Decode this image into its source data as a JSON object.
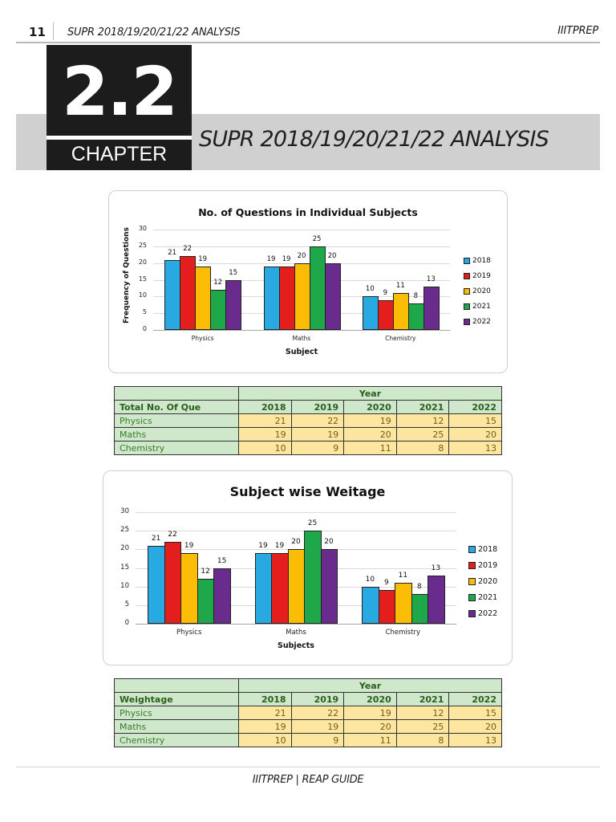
{
  "header": {
    "page_number": "11",
    "title": "SUPR 2018/19/20/21/22 ANALYSIS",
    "brand": "IIITPREP"
  },
  "chapter": {
    "number": "2.2",
    "label": "CHAPTER",
    "title": "SUPR 2018/19/20/21/22 ANALYSIS"
  },
  "colors": {
    "2018": "#29a9e1",
    "2019": "#e31e1c",
    "2020": "#fbbc05",
    "2021": "#1fa84a",
    "2022": "#6a2c8c",
    "table_header_bg": "#cfe8cc",
    "table_value_bg": "#fde7a0"
  },
  "chart_data": [
    {
      "type": "bar",
      "title": "No. of Questions in Individual Subjects",
      "xlabel": "Subject",
      "ylabel": "Frequency of Questions",
      "categories": [
        "Physics",
        "Maths",
        "Chemistry"
      ],
      "yticks": [
        "0",
        "5",
        "10",
        "15",
        "20",
        "25",
        "30"
      ],
      "ylim": [
        0,
        30
      ],
      "grid": true,
      "legend_position": "right",
      "series": [
        {
          "name": "2018",
          "values": [
            21,
            19,
            10
          ]
        },
        {
          "name": "2019",
          "values": [
            22,
            19,
            9
          ]
        },
        {
          "name": "2020",
          "values": [
            19,
            20,
            11
          ]
        },
        {
          "name": "2021",
          "values": [
            12,
            25,
            8
          ]
        },
        {
          "name": "2022",
          "values": [
            15,
            20,
            13
          ]
        }
      ]
    },
    {
      "type": "bar",
      "title": "Subject wise Weitage",
      "xlabel": "Subjects",
      "ylabel": "",
      "categories": [
        "Physics",
        "Maths",
        "Chemistry"
      ],
      "yticks": [
        "0",
        "5",
        "10",
        "15",
        "20",
        "25",
        "30"
      ],
      "ylim": [
        0,
        30
      ],
      "grid": true,
      "legend_position": "right",
      "series": [
        {
          "name": "2018",
          "values": [
            21,
            19,
            10
          ]
        },
        {
          "name": "2019",
          "values": [
            22,
            19,
            9
          ]
        },
        {
          "name": "2020",
          "values": [
            19,
            20,
            11
          ]
        },
        {
          "name": "2021",
          "values": [
            12,
            25,
            8
          ]
        },
        {
          "name": "2022",
          "values": [
            15,
            20,
            13
          ]
        }
      ]
    }
  ],
  "tables": [
    {
      "corner_label": "Total No. Of Que",
      "group_header": "Year",
      "years": [
        "2018",
        "2019",
        "2020",
        "2021",
        "2022"
      ],
      "rows": [
        {
          "label": "Physics",
          "values": [
            "21",
            "22",
            "19",
            "12",
            "15"
          ]
        },
        {
          "label": "Maths",
          "values": [
            "19",
            "19",
            "20",
            "25",
            "20"
          ]
        },
        {
          "label": "Chemistry",
          "values": [
            "10",
            "9",
            "11",
            "8",
            "13"
          ]
        }
      ]
    },
    {
      "corner_label": "Weightage",
      "group_header": "Year",
      "years": [
        "2018",
        "2019",
        "2020",
        "2021",
        "2022"
      ],
      "rows": [
        {
          "label": "Physics",
          "values": [
            "21",
            "22",
            "19",
            "12",
            "15"
          ]
        },
        {
          "label": "Maths",
          "values": [
            "19",
            "19",
            "20",
            "25",
            "20"
          ]
        },
        {
          "label": "Chemistry",
          "values": [
            "10",
            "9",
            "11",
            "8",
            "13"
          ]
        }
      ]
    }
  ],
  "footer": {
    "text": "IIITPREP  | REAP GUIDE"
  }
}
